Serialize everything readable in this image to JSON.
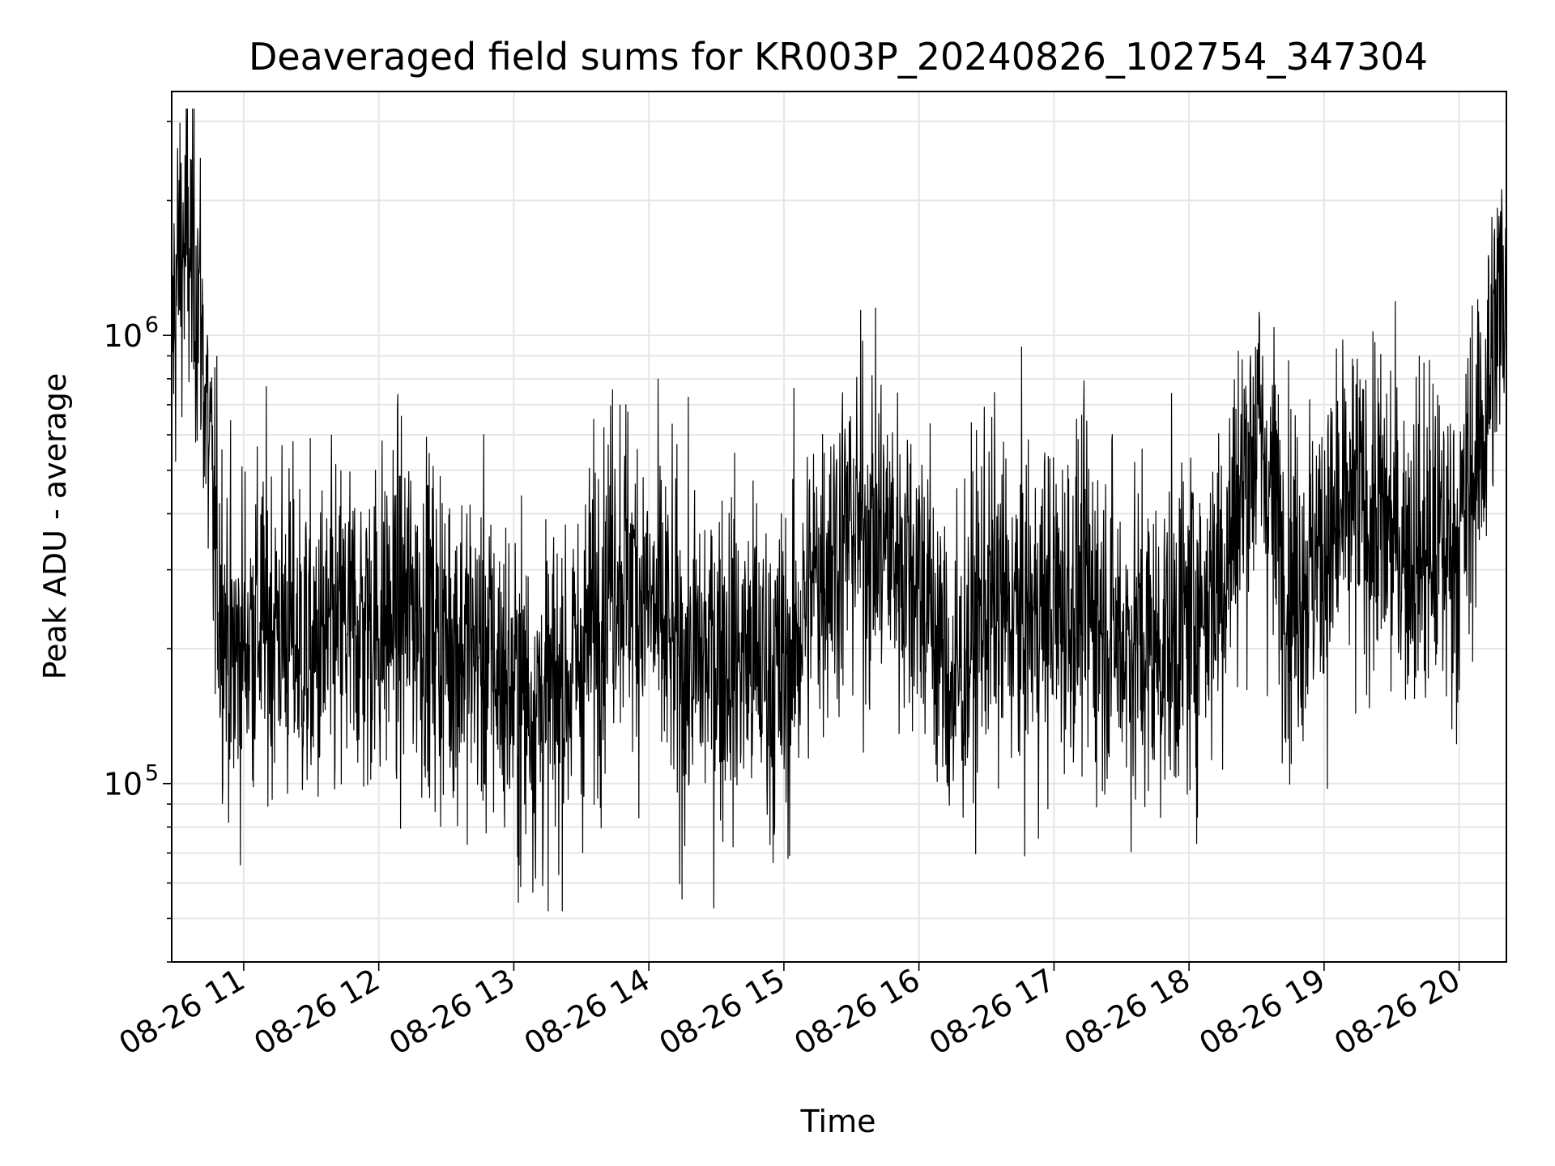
{
  "chart_data": {
    "type": "line",
    "title": "Deaveraged field sums for KR003P_20240826_102754_347304",
    "xlabel": "Time",
    "ylabel": "Peak ADU - average",
    "x_ticks": [
      "08-26 11",
      "08-26 12",
      "08-26 13",
      "08-26 14",
      "08-26 15",
      "08-26 16",
      "08-26 17",
      "08-26 18",
      "08-26 19",
      "08-26 20"
    ],
    "x_range": [
      "2024-08-26 10:28",
      "2024-08-26 20:21"
    ],
    "y_scale": "log",
    "y_range": [
      40000,
      3500000
    ],
    "y_major_ticks": [
      100000,
      1000000
    ],
    "y_tick_labels": [
      "10",
      "10"
    ],
    "y_tick_exponents": [
      "5",
      "6"
    ],
    "grid": true,
    "line_color": "#000000",
    "series": [
      {
        "x": [
          "2024-08-26 10:28",
          "2024-08-26 10:32",
          "2024-08-26 10:36",
          "2024-08-26 10:40",
          "2024-08-26 10:44",
          "2024-08-26 10:48",
          "2024-08-26 10:52",
          "2024-08-26 10:55",
          "2024-08-26 10:58",
          "2024-08-26 11:05",
          "2024-08-26 11:15",
          "2024-08-26 11:30",
          "2024-08-26 11:45",
          "2024-08-26 12:00",
          "2024-08-26 12:15",
          "2024-08-26 12:30",
          "2024-08-26 12:45",
          "2024-08-26 13:00",
          "2024-08-26 13:15",
          "2024-08-26 13:30",
          "2024-08-26 13:45",
          "2024-08-26 14:00",
          "2024-08-26 14:15",
          "2024-08-26 14:30",
          "2024-08-26 14:45",
          "2024-08-26 15:00",
          "2024-08-26 15:15",
          "2024-08-26 15:30",
          "2024-08-26 15:45",
          "2024-08-26 16:00",
          "2024-08-26 16:15",
          "2024-08-26 16:30",
          "2024-08-26 16:45",
          "2024-08-26 17:00",
          "2024-08-26 17:15",
          "2024-08-26 17:30",
          "2024-08-26 17:45",
          "2024-08-26 18:00",
          "2024-08-26 18:15",
          "2024-08-26 18:30",
          "2024-08-26 18:45",
          "2024-08-26 19:00",
          "2024-08-26 19:15",
          "2024-08-26 19:30",
          "2024-08-26 19:45",
          "2024-08-26 20:00",
          "2024-08-26 20:10",
          "2024-08-26 20:21"
        ],
        "values": [
          1000000,
          1600000,
          1500000,
          1300000,
          600000,
          300000,
          230000,
          180000,
          200000,
          230000,
          230000,
          190000,
          220000,
          230000,
          250000,
          210000,
          200000,
          160000,
          150000,
          190000,
          330000,
          250000,
          180000,
          200000,
          190000,
          170000,
          300000,
          380000,
          350000,
          300000,
          160000,
          260000,
          230000,
          250000,
          260000,
          210000,
          200000,
          230000,
          300000,
          630000,
          280000,
          330000,
          420000,
          360000,
          330000,
          350000,
          600000,
          1500000
        ]
      }
    ]
  }
}
